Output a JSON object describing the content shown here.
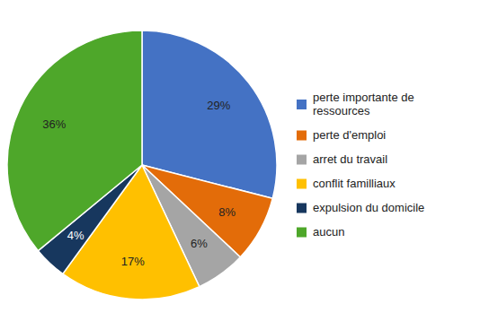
{
  "chart_data": {
    "type": "pie",
    "categories": [
      "perte importante de\nressources",
      "perte d'emploi",
      "arret du travail",
      "conflit familliaux",
      "expulsion du domicile",
      "aucun"
    ],
    "values": [
      29,
      8,
      6,
      17,
      4,
      36
    ],
    "value_labels": [
      "29%",
      "8%",
      "6%",
      "17%",
      "4%",
      "36%"
    ],
    "colors": [
      "#4472C4",
      "#E36C09",
      "#A5A5A5",
      "#FFC000",
      "#17375E",
      "#4EA72A"
    ],
    "data_labels": true,
    "legend": "right"
  }
}
